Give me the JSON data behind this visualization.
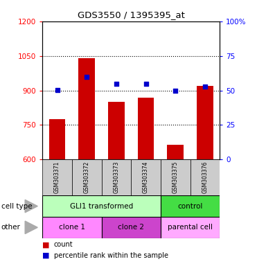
{
  "title": "GDS3550 / 1395395_at",
  "samples": [
    "GSM303371",
    "GSM303372",
    "GSM303373",
    "GSM303374",
    "GSM303375",
    "GSM303376"
  ],
  "counts": [
    775,
    1040,
    850,
    870,
    665,
    920
  ],
  "percentile_ranks": [
    50.5,
    60,
    55,
    55,
    50,
    53
  ],
  "ylim_left": [
    600,
    1200
  ],
  "ylim_right": [
    0,
    100
  ],
  "yticks_left": [
    600,
    750,
    900,
    1050,
    1200
  ],
  "yticks_right": [
    0,
    25,
    50,
    75,
    100
  ],
  "ytick_labels_right": [
    "0",
    "25",
    "50",
    "75",
    "100%"
  ],
  "bar_color": "#cc0000",
  "marker_color": "#0000cc",
  "bar_width": 0.55,
  "grid_lines": [
    750,
    900,
    1050
  ],
  "cell_type_groups": [
    {
      "label": "GLI1 transformed",
      "start": 0,
      "end": 4,
      "color": "#bbffbb"
    },
    {
      "label": "control",
      "start": 4,
      "end": 6,
      "color": "#44dd44"
    }
  ],
  "other_groups": [
    {
      "label": "clone 1",
      "start": 0,
      "end": 2,
      "color": "#ff88ff"
    },
    {
      "label": "clone 2",
      "start": 2,
      "end": 4,
      "color": "#cc44cc"
    },
    {
      "label": "parental cell",
      "start": 4,
      "end": 6,
      "color": "#ffaaff"
    }
  ],
  "cell_type_label": "cell type",
  "other_label": "other",
  "legend_count": "count",
  "legend_pct": "percentile rank within the sample",
  "sample_bg": "#cccccc"
}
